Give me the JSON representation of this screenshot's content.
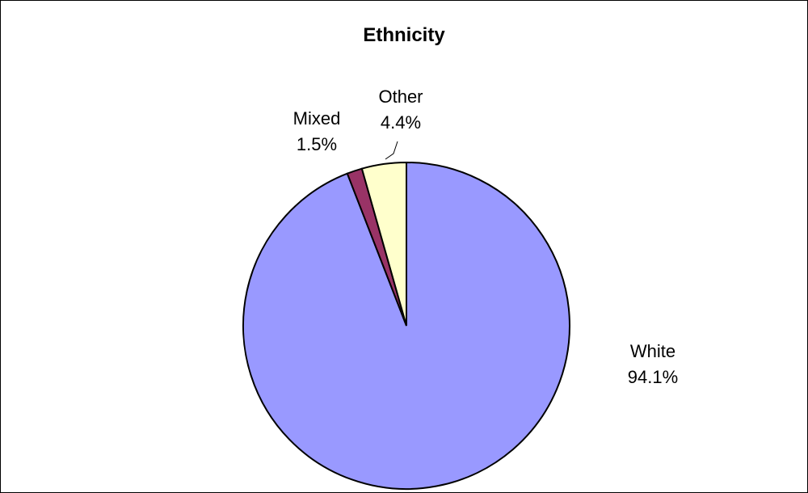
{
  "chart_data": {
    "type": "pie",
    "title": "Ethnicity",
    "categories": [
      "White",
      "Mixed",
      "Other"
    ],
    "values": [
      94.1,
      1.5,
      4.4
    ],
    "value_labels": [
      "94.1%",
      "1.5%",
      "4.4%"
    ],
    "colors": [
      "#9999ff",
      "#993366",
      "#ffffcc"
    ],
    "start": "12 o'clock",
    "direction": "clockwise",
    "legend": "none"
  }
}
